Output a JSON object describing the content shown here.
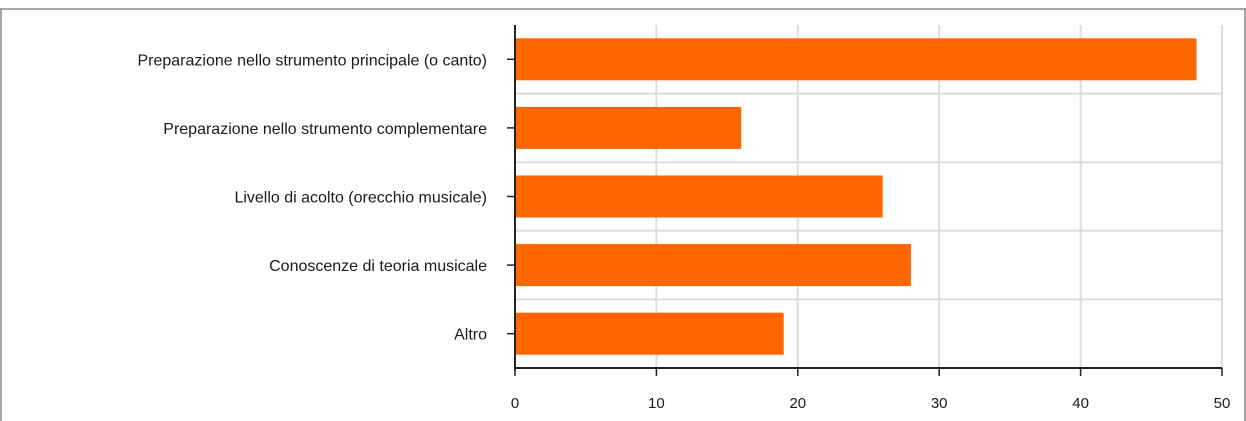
{
  "chart_data": {
    "type": "bar",
    "orientation": "horizontal",
    "title": "",
    "xlabel": "",
    "ylabel": "",
    "categories": [
      "Preparazione nello strumento principale (o canto)",
      "Preparazione nello strumento complementare",
      "Livello di acolto (orecchio musicale)",
      "Conoscenze di teoria musicale",
      "Altro"
    ],
    "values": [
      48.2,
      16,
      26,
      28,
      19
    ],
    "xlim": [
      0,
      50
    ],
    "xticks": [
      "0",
      "10",
      "20",
      "30",
      "40",
      "50"
    ],
    "grid": true,
    "legend": "none",
    "bar_color": "#ff6600",
    "grid_color": "#dddddd",
    "axis_color": "#222222"
  }
}
